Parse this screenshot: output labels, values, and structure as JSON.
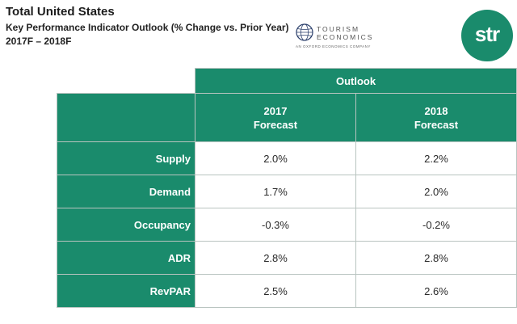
{
  "header": {
    "title": "Total United States",
    "subtitle": "Key Performance Indicator Outlook (% Change vs. Prior Year)",
    "date_range": "2017F – 2018F"
  },
  "logos": {
    "tourism_economics": {
      "line1": "TOURISM",
      "line2": "ECONOMICS",
      "tagline": "AN OXFORD ECONOMICS COMPANY",
      "icon": "globe-icon"
    },
    "str": {
      "text": "str",
      "color": "#1a8b6c"
    }
  },
  "table": {
    "title": "Outlook",
    "columns": [
      {
        "year": "2017",
        "label": "Forecast"
      },
      {
        "year": "2018",
        "label": "Forecast"
      }
    ],
    "rows": [
      {
        "label": "Supply",
        "values": [
          "2.0%",
          "2.2%"
        ]
      },
      {
        "label": "Demand",
        "values": [
          "1.7%",
          "2.0%"
        ]
      },
      {
        "label": "Occupancy",
        "values": [
          "-0.3%",
          "-0.2%"
        ]
      },
      {
        "label": "ADR",
        "values": [
          "2.8%",
          "2.8%"
        ]
      },
      {
        "label": "RevPAR",
        "values": [
          "2.5%",
          "2.6%"
        ]
      }
    ]
  },
  "colors": {
    "header_green": "#1a8b6c",
    "border": "#b9c4c0"
  }
}
